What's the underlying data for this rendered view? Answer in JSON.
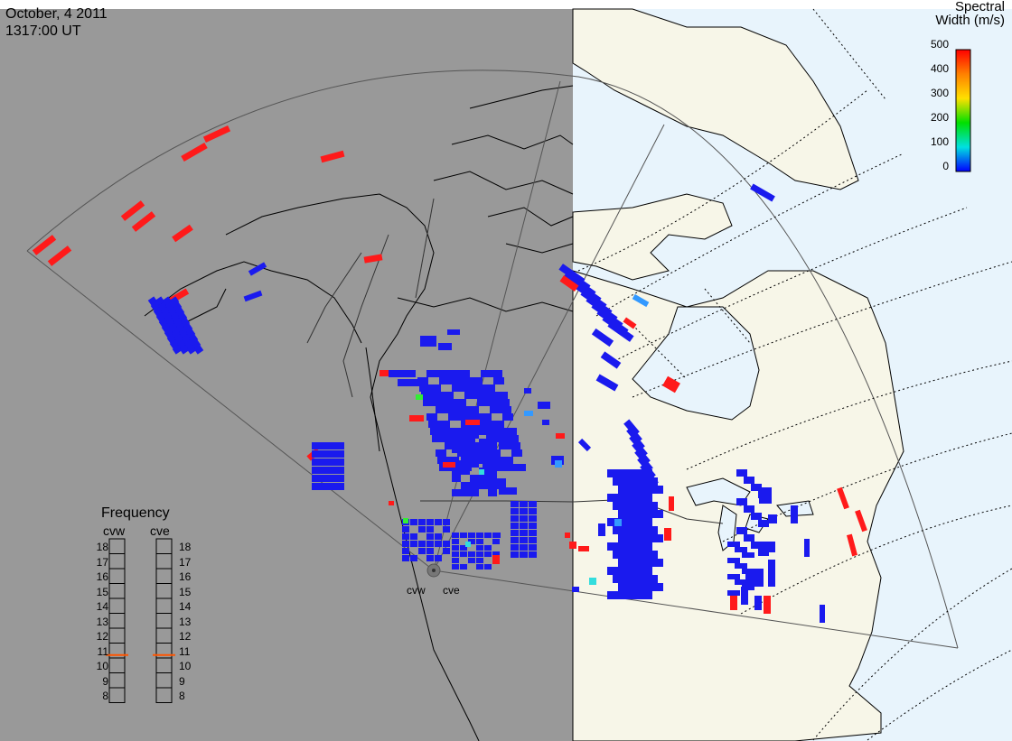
{
  "header": {
    "date": "October, 4 2011",
    "time": "1317:00 UT"
  },
  "legend": {
    "title_line1": "Spectral",
    "title_line2": "Width (m/s)",
    "scale": [
      "500",
      "400",
      "300",
      "200",
      "100",
      "0"
    ],
    "colors": [
      "#ff0000",
      "#ff8000",
      "#ffe000",
      "#00e000",
      "#00e0e0",
      "#0000ff"
    ]
  },
  "frequency": {
    "title": "Frequency",
    "radars": [
      "cvw",
      "cve"
    ],
    "ticks": [
      "18",
      "17",
      "16",
      "15",
      "14",
      "13",
      "12",
      "11",
      "10",
      "9",
      "8"
    ],
    "cvw_freq": 10.7,
    "cve_freq": 10.7
  },
  "radar_sites": {
    "west": "cvw",
    "east": "cve"
  },
  "map_colors": {
    "night": "#999999",
    "land_day": "#f7f6e8",
    "ocean_day": "#e8f4fc",
    "echo_low": "#1a1aee",
    "echo_high": "#ff1a1a",
    "echo_mid": "#3399ff",
    "echo_cyan": "#33dddd",
    "echo_green": "#33ee33"
  }
}
